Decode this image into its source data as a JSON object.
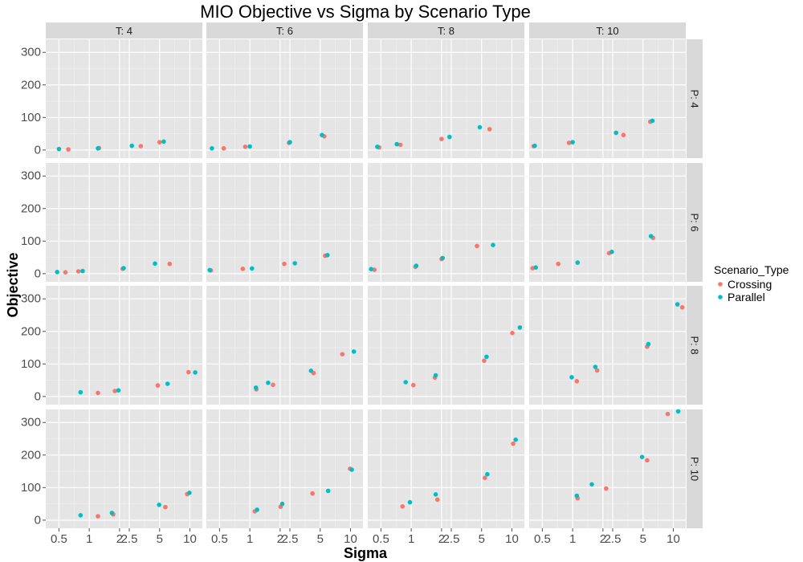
{
  "chart_data": {
    "type": "scatter",
    "title": "MIO Objective vs Sigma by Scenario Type",
    "xlabel": "Sigma",
    "ylabel": "Objective",
    "x_scale": "log",
    "x_ticks": [
      0.5,
      1,
      2,
      2.5,
      5,
      10
    ],
    "x_tick_labels": [
      "0.5",
      "1",
      "2",
      "2.5",
      "5",
      "10"
    ],
    "y_ticks": [
      0,
      100,
      200,
      300
    ],
    "y_tick_labels": [
      "0",
      "100",
      "200",
      "300"
    ],
    "ylim": [
      -25,
      340
    ],
    "grid": true,
    "legend_placement": "right",
    "legend_title": "Scenario_Type",
    "series_colors": {
      "Crossing": "#F8766D",
      "Parallel": "#00BFC4"
    },
    "series": [
      {
        "name": "Crossing"
      },
      {
        "name": "Parallel"
      }
    ],
    "col_labels": [
      "T: 4",
      "T: 6",
      "T: 8",
      "T: 10"
    ],
    "row_labels": [
      "P: 4",
      "P: 6",
      "P: 8",
      "P: 10"
    ],
    "facets": [
      {
        "row": 0,
        "col": 0,
        "points": [
          [
            0.62,
            2,
            "Crossing"
          ],
          [
            0.5,
            3,
            "Parallel"
          ],
          [
            1.25,
            6,
            "Crossing"
          ],
          [
            1.22,
            5,
            "Parallel"
          ],
          [
            3.25,
            12,
            "Crossing"
          ],
          [
            2.65,
            13,
            "Parallel"
          ],
          [
            5.0,
            24,
            "Crossing"
          ],
          [
            5.5,
            26,
            "Parallel"
          ]
        ]
      },
      {
        "row": 0,
        "col": 1,
        "points": [
          [
            0.55,
            5,
            "Crossing"
          ],
          [
            0.42,
            5,
            "Parallel"
          ],
          [
            0.9,
            10,
            "Crossing"
          ],
          [
            1.0,
            11,
            "Parallel"
          ],
          [
            2.45,
            22,
            "Crossing"
          ],
          [
            2.5,
            24,
            "Parallel"
          ],
          [
            5.5,
            42,
            "Crossing"
          ],
          [
            5.2,
            46,
            "Parallel"
          ]
        ]
      },
      {
        "row": 0,
        "col": 2,
        "points": [
          [
            0.48,
            8,
            "Crossing"
          ],
          [
            0.46,
            10,
            "Parallel"
          ],
          [
            0.78,
            16,
            "Crossing"
          ],
          [
            0.72,
            18,
            "Parallel"
          ],
          [
            2.0,
            34,
            "Crossing"
          ],
          [
            2.4,
            40,
            "Parallel"
          ],
          [
            6.0,
            64,
            "Crossing"
          ],
          [
            4.8,
            70,
            "Parallel"
          ]
        ]
      },
      {
        "row": 0,
        "col": 3,
        "points": [
          [
            0.41,
            12,
            "Crossing"
          ],
          [
            0.42,
            13,
            "Parallel"
          ],
          [
            0.92,
            22,
            "Crossing"
          ],
          [
            1.0,
            24,
            "Parallel"
          ],
          [
            3.2,
            46,
            "Crossing"
          ],
          [
            2.7,
            53,
            "Parallel"
          ],
          [
            5.9,
            87,
            "Crossing"
          ],
          [
            6.2,
            90,
            "Parallel"
          ]
        ]
      },
      {
        "row": 1,
        "col": 0,
        "points": [
          [
            0.58,
            4,
            "Crossing"
          ],
          [
            0.48,
            5,
            "Parallel"
          ],
          [
            0.78,
            7,
            "Crossing"
          ],
          [
            0.86,
            8,
            "Parallel"
          ],
          [
            2.15,
            15,
            "Crossing"
          ],
          [
            2.2,
            17,
            "Parallel"
          ],
          [
            6.3,
            30,
            "Crossing"
          ],
          [
            4.5,
            31,
            "Parallel"
          ]
        ]
      },
      {
        "row": 1,
        "col": 1,
        "points": [
          [
            0.41,
            10,
            "Crossing"
          ],
          [
            0.4,
            11,
            "Parallel"
          ],
          [
            0.85,
            15,
            "Crossing"
          ],
          [
            1.05,
            16,
            "Parallel"
          ],
          [
            2.2,
            30,
            "Crossing"
          ],
          [
            2.8,
            32,
            "Parallel"
          ],
          [
            5.6,
            55,
            "Crossing"
          ],
          [
            5.9,
            57,
            "Parallel"
          ]
        ]
      },
      {
        "row": 1,
        "col": 2,
        "points": [
          [
            0.43,
            12,
            "Crossing"
          ],
          [
            0.4,
            14,
            "Parallel"
          ],
          [
            1.1,
            21,
            "Crossing"
          ],
          [
            1.12,
            24,
            "Parallel"
          ],
          [
            2.0,
            45,
            "Crossing"
          ],
          [
            2.05,
            48,
            "Parallel"
          ],
          [
            4.5,
            85,
            "Crossing"
          ],
          [
            6.5,
            88,
            "Parallel"
          ]
        ]
      },
      {
        "row": 1,
        "col": 3,
        "points": [
          [
            0.4,
            17,
            "Crossing"
          ],
          [
            0.43,
            19,
            "Parallel"
          ],
          [
            0.72,
            30,
            "Crossing"
          ],
          [
            1.12,
            34,
            "Parallel"
          ],
          [
            2.3,
            63,
            "Crossing"
          ],
          [
            2.45,
            67,
            "Parallel"
          ],
          [
            6.3,
            110,
            "Crossing"
          ],
          [
            6.0,
            115,
            "Parallel"
          ]
        ]
      },
      {
        "row": 2,
        "col": 0,
        "points": [
          [
            1.22,
            11,
            "Crossing"
          ],
          [
            0.82,
            13,
            "Parallel"
          ],
          [
            1.8,
            17,
            "Crossing"
          ],
          [
            1.95,
            19,
            "Parallel"
          ],
          [
            4.8,
            34,
            "Crossing"
          ],
          [
            6.0,
            39,
            "Parallel"
          ],
          [
            9.7,
            75,
            "Crossing"
          ],
          [
            11.3,
            74,
            "Parallel"
          ]
        ]
      },
      {
        "row": 2,
        "col": 1,
        "points": [
          [
            1.16,
            22,
            "Crossing"
          ],
          [
            1.15,
            27,
            "Parallel"
          ],
          [
            1.7,
            36,
            "Crossing"
          ],
          [
            1.52,
            42,
            "Parallel"
          ],
          [
            4.3,
            72,
            "Crossing"
          ],
          [
            4.05,
            79,
            "Parallel"
          ],
          [
            8.3,
            130,
            "Crossing"
          ],
          [
            10.8,
            138,
            "Parallel"
          ]
        ]
      },
      {
        "row": 2,
        "col": 2,
        "points": [
          [
            1.05,
            35,
            "Crossing"
          ],
          [
            0.88,
            44,
            "Parallel"
          ],
          [
            1.72,
            58,
            "Crossing"
          ],
          [
            1.75,
            65,
            "Parallel"
          ],
          [
            5.3,
            110,
            "Crossing"
          ],
          [
            5.6,
            122,
            "Parallel"
          ],
          [
            10.1,
            195,
            "Crossing"
          ],
          [
            12.0,
            212,
            "Parallel"
          ]
        ]
      },
      {
        "row": 2,
        "col": 3,
        "points": [
          [
            1.1,
            47,
            "Crossing"
          ],
          [
            0.98,
            59,
            "Parallel"
          ],
          [
            1.75,
            80,
            "Crossing"
          ],
          [
            1.68,
            91,
            "Parallel"
          ],
          [
            5.5,
            153,
            "Crossing"
          ],
          [
            5.65,
            161,
            "Parallel"
          ],
          [
            12.3,
            274,
            "Crossing"
          ],
          [
            11.0,
            283,
            "Parallel"
          ]
        ]
      },
      {
        "row": 3,
        "col": 0,
        "points": [
          [
            1.22,
            12,
            "Crossing"
          ],
          [
            0.82,
            15,
            "Parallel"
          ],
          [
            1.73,
            18,
            "Crossing"
          ],
          [
            1.68,
            22,
            "Parallel"
          ],
          [
            5.7,
            40,
            "Crossing"
          ],
          [
            4.95,
            47,
            "Parallel"
          ],
          [
            9.4,
            80,
            "Crossing"
          ],
          [
            9.9,
            84,
            "Parallel"
          ]
        ]
      },
      {
        "row": 3,
        "col": 1,
        "points": [
          [
            1.12,
            27,
            "Crossing"
          ],
          [
            1.18,
            32,
            "Parallel"
          ],
          [
            2.02,
            41,
            "Crossing"
          ],
          [
            2.1,
            50,
            "Parallel"
          ],
          [
            4.2,
            82,
            "Crossing"
          ],
          [
            6.0,
            90,
            "Parallel"
          ],
          [
            9.9,
            158,
            "Crossing"
          ],
          [
            10.3,
            155,
            "Parallel"
          ]
        ]
      },
      {
        "row": 3,
        "col": 2,
        "points": [
          [
            0.82,
            42,
            "Crossing"
          ],
          [
            0.97,
            55,
            "Parallel"
          ],
          [
            1.82,
            63,
            "Crossing"
          ],
          [
            1.75,
            79,
            "Parallel"
          ],
          [
            5.4,
            130,
            "Crossing"
          ],
          [
            5.7,
            141,
            "Parallel"
          ],
          [
            10.3,
            235,
            "Crossing"
          ],
          [
            10.9,
            247,
            "Parallel"
          ]
        ]
      },
      {
        "row": 3,
        "col": 3,
        "points": [
          [
            1.12,
            67,
            "Crossing"
          ],
          [
            1.1,
            75,
            "Parallel"
          ],
          [
            2.15,
            97,
            "Crossing"
          ],
          [
            1.55,
            110,
            "Parallel"
          ],
          [
            5.5,
            184,
            "Crossing"
          ],
          [
            4.9,
            194,
            "Parallel"
          ],
          [
            8.8,
            326,
            "Crossing"
          ],
          [
            11.2,
            334,
            "Parallel"
          ]
        ]
      }
    ]
  }
}
